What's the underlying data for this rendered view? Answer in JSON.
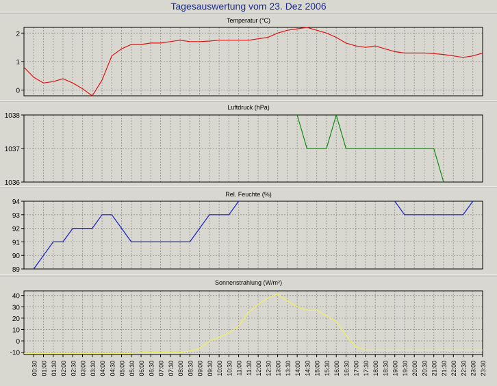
{
  "title": "Tagesauswertung vom 23. Dez 2006",
  "x_labels": [
    "00:30",
    "01:00",
    "01:30",
    "02:00",
    "02:30",
    "03:00",
    "03:30",
    "04:00",
    "04:30",
    "05:00",
    "05:30",
    "06:00",
    "06:30",
    "07:00",
    "07:30",
    "08:00",
    "08:30",
    "09:00",
    "09:30",
    "10:00",
    "10:30",
    "11:00",
    "11:30",
    "12:00",
    "12:30",
    "13:00",
    "13:30",
    "14:00",
    "14:30",
    "15:00",
    "15:30",
    "16:00",
    "16:30",
    "17:00",
    "17:30",
    "18:00",
    "18:30",
    "19:00",
    "19:30",
    "20:00",
    "20:30",
    "21:00",
    "21:30",
    "22:00",
    "22:30",
    "23:00",
    "23:30"
  ],
  "chart_data": [
    {
      "type": "line",
      "title": "Temperatur (°C)",
      "color": "#e01010",
      "ylim": [
        -0.2,
        2.2
      ],
      "yticks": [
        0,
        1,
        2
      ],
      "grid": true,
      "x": [
        "00:00",
        "00:30",
        "01:00",
        "01:30",
        "02:00",
        "02:30",
        "03:00",
        "03:30",
        "04:00",
        "04:30",
        "05:00",
        "05:30",
        "06:00",
        "06:30",
        "07:00",
        "07:30",
        "08:00",
        "08:30",
        "09:00",
        "09:30",
        "10:00",
        "10:30",
        "11:00",
        "11:30",
        "12:00",
        "12:30",
        "13:00",
        "13:30",
        "14:00",
        "14:30",
        "15:00",
        "15:30",
        "16:00",
        "16:30",
        "17:00",
        "17:30",
        "18:00",
        "18:30",
        "19:00",
        "19:30",
        "20:00",
        "20:30",
        "21:00",
        "21:30",
        "22:00",
        "22:30",
        "23:00",
        "23:30"
      ],
      "values": [
        0.8,
        0.45,
        0.25,
        0.3,
        0.4,
        0.25,
        0.05,
        -0.2,
        0.35,
        1.2,
        1.45,
        1.6,
        1.6,
        1.65,
        1.65,
        1.7,
        1.75,
        1.7,
        1.7,
        1.72,
        1.75,
        1.75,
        1.75,
        1.75,
        1.8,
        1.85,
        2.0,
        2.1,
        2.15,
        2.2,
        2.1,
        2.0,
        1.85,
        1.65,
        1.55,
        1.5,
        1.55,
        1.45,
        1.35,
        1.3,
        1.3,
        1.3,
        1.28,
        1.25,
        1.2,
        1.15,
        1.2,
        1.3
      ]
    },
    {
      "type": "line",
      "title": "Luftdruck (hPa)",
      "color": "#108a10",
      "ylim": [
        1036,
        1038
      ],
      "yticks": [
        1036,
        1037,
        1038
      ],
      "grid": true,
      "x": [
        "14:00",
        "14:30",
        "15:00",
        "15:30",
        "16:00",
        "16:30",
        "17:00",
        "17:30",
        "18:00",
        "18:30",
        "19:00",
        "19:30",
        "20:00",
        "20:30",
        "21:00",
        "21:30"
      ],
      "values": [
        1038,
        1037,
        1037,
        1037,
        1038,
        1037,
        1037,
        1037,
        1037,
        1037,
        1037,
        1037,
        1037,
        1037,
        1037,
        1036
      ]
    },
    {
      "type": "line",
      "title": "Rel. Feuchte (%)",
      "color": "#1818c8",
      "ylim": [
        89,
        94
      ],
      "yticks": [
        89,
        90,
        91,
        92,
        93,
        94
      ],
      "grid": true,
      "segments": [
        {
          "x": [
            "00:30",
            "01:00",
            "01:30",
            "02:00",
            "02:30",
            "03:00",
            "03:30",
            "04:00",
            "04:30",
            "05:00",
            "05:30",
            "06:00",
            "06:30",
            "07:00",
            "07:30",
            "08:00",
            "08:30",
            "09:00",
            "09:30",
            "10:00",
            "10:30",
            "11:00"
          ],
          "values": [
            89,
            90,
            91,
            91,
            92,
            92,
            92,
            93,
            93,
            92,
            91,
            91,
            91,
            91,
            91,
            91,
            91,
            92,
            93,
            93,
            93,
            94
          ]
        },
        {
          "x": [
            "19:00",
            "19:30",
            "20:00",
            "20:30",
            "21:00",
            "21:30",
            "22:00",
            "22:30",
            "23:00"
          ],
          "values": [
            94,
            93,
            93,
            93,
            93,
            93,
            93,
            93,
            94
          ]
        }
      ]
    },
    {
      "type": "line",
      "title": "Sonnenstrahlung (W/m²)",
      "color": "#f0f060",
      "ylim": [
        -12,
        44
      ],
      "yticks": [
        -10,
        0,
        10,
        20,
        30,
        40
      ],
      "grid": true,
      "x": [
        "00:00",
        "00:30",
        "01:00",
        "01:30",
        "02:00",
        "02:30",
        "03:00",
        "03:30",
        "04:00",
        "04:30",
        "05:00",
        "05:30",
        "06:00",
        "06:30",
        "07:00",
        "07:30",
        "08:00",
        "08:30",
        "09:00",
        "09:30",
        "10:00",
        "10:30",
        "11:00",
        "11:30",
        "12:00",
        "12:30",
        "13:00",
        "13:30",
        "14:00",
        "14:30",
        "15:00",
        "15:30",
        "16:00",
        "16:30",
        "17:00",
        "17:30",
        "18:00",
        "18:30",
        "19:00",
        "19:30",
        "20:00",
        "20:30",
        "21:00",
        "21:30",
        "22:00",
        "22:30",
        "23:00",
        "23:30"
      ],
      "values": [
        -11,
        -11,
        -11,
        -11,
        -11,
        -11,
        -11,
        -11,
        -11,
        -11,
        -11,
        -11,
        -10,
        -10,
        -10,
        -10,
        -10,
        -9,
        -7,
        0,
        3,
        7,
        13,
        25,
        32,
        38,
        41,
        35,
        30,
        27,
        27,
        22,
        17,
        5,
        -5,
        -8,
        -8,
        -8,
        -8,
        -8,
        -8,
        -8,
        -8,
        -8,
        -8,
        -8,
        -8,
        -8
      ]
    }
  ]
}
